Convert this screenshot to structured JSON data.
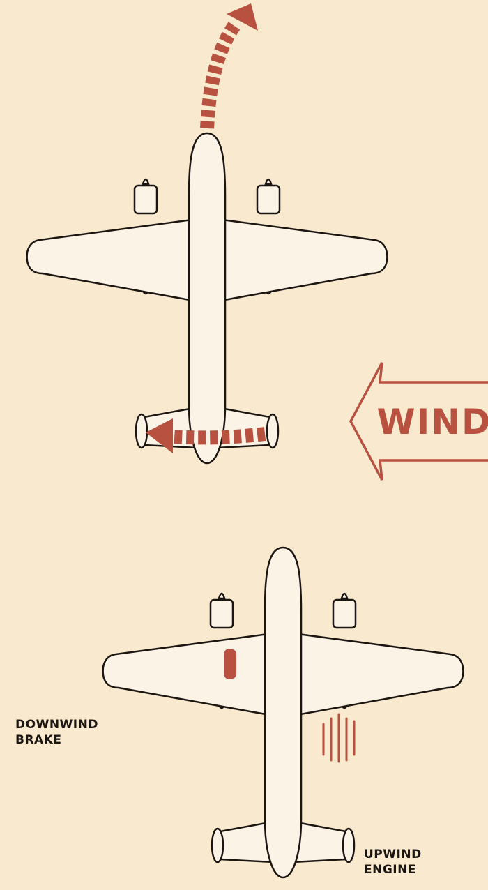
{
  "wind_label": "WIND",
  "downwind_label": [
    "DOWNWIND",
    "BRAKE"
  ],
  "upwind_label": [
    "UPWIND",
    "ENGINE"
  ],
  "colors": {
    "background": "#f8e9cf",
    "accent": "#b8513f",
    "outline": "#1c1613",
    "aircraft_fill": "#fbf4e6"
  }
}
